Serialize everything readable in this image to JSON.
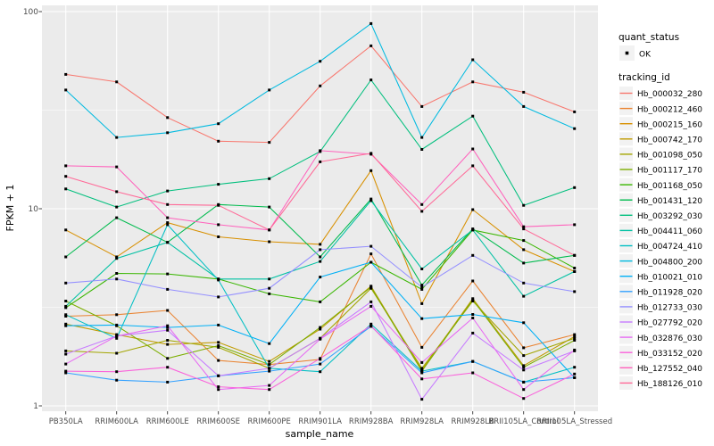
{
  "figure": {
    "background": "#FFFFFF",
    "panel_background": "#EBEBEB",
    "grid_color": "#FFFFFF",
    "tick_label_color": "#4D4D4D",
    "point_color": "#000000"
  },
  "chart_data": {
    "type": "line",
    "title": "",
    "xlabel": "sample_name",
    "ylabel": "FPKM + 1",
    "y_scale": "log10",
    "y_ticks": [
      1,
      10,
      100
    ],
    "y_minor_ticks": [
      3.1623,
      31.6228
    ],
    "ylim": [
      0.94,
      107
    ],
    "grid": "on",
    "legend_position": "right",
    "point_shape": "square",
    "categories": [
      "PB350LA",
      "RRIM600LA",
      "RRIM600LE",
      "RRIM600SE",
      "RRIM600PE",
      "RRIM901LA",
      "RRIM928BA",
      "RRIM928LA",
      "RRIM928LB",
      "RRII105LA_Control",
      "RRII105LA_Stressed"
    ],
    "legend": {
      "quant_status_title": "quant_status",
      "quant_status_items": [
        {
          "label": "OK",
          "marker": "black-square-point"
        }
      ],
      "tracking_title": "tracking_id"
    },
    "series": [
      {
        "tracking_id": "Hb_000032_280",
        "color": "#F8766D",
        "values": [
          48,
          44,
          29,
          22,
          21.7,
          42,
          67,
          33,
          44,
          39,
          31
        ]
      },
      {
        "tracking_id": "Hb_000212_460",
        "color": "#EA8331",
        "values": [
          2.85,
          2.9,
          3.05,
          1.7,
          1.62,
          1.72,
          5.9,
          1.98,
          4.3,
          1.97,
          2.3
        ]
      },
      {
        "tracking_id": "Hb_000215_160",
        "color": "#D89000",
        "values": [
          7.8,
          5.7,
          8.5,
          7.2,
          6.8,
          6.6,
          15.6,
          3.3,
          9.9,
          6.2,
          4.8
        ]
      },
      {
        "tracking_id": "Hb_000742_170",
        "color": "#C09B00",
        "values": [
          2.6,
          2.3,
          2.05,
          2.1,
          1.68,
          2.45,
          4.05,
          1.52,
          3.5,
          1.6,
          2.25
        ]
      },
      {
        "tracking_id": "Hb_001098_050",
        "color": "#A3A500",
        "values": [
          1.9,
          1.85,
          2.15,
          1.98,
          1.55,
          2.2,
          3.95,
          1.55,
          3.4,
          1.8,
          2.2
        ]
      },
      {
        "tracking_id": "Hb_001117_170",
        "color": "#7CAE00",
        "values": [
          3.4,
          2.55,
          1.74,
          2.02,
          1.62,
          2.5,
          4.0,
          1.5,
          3.45,
          1.57,
          2.15
        ]
      },
      {
        "tracking_id": "Hb_001168_050",
        "color": "#39B600",
        "values": [
          3.15,
          4.7,
          4.67,
          4.4,
          3.7,
          3.37,
          5.35,
          3.9,
          7.8,
          6.9,
          5.0
        ]
      },
      {
        "tracking_id": "Hb_001431_120",
        "color": "#00BB4E",
        "values": [
          5.7,
          9.0,
          6.75,
          10.5,
          10.2,
          5.7,
          11.2,
          4.1,
          7.9,
          5.3,
          5.8
        ]
      },
      {
        "tracking_id": "Hb_003292_030",
        "color": "#00BF7D",
        "values": [
          12.6,
          10.2,
          12.3,
          13.3,
          14.2,
          19.5,
          45,
          20,
          29.5,
          10.4,
          12.8
        ]
      },
      {
        "tracking_id": "Hb_004411_060",
        "color": "#00C1A3",
        "values": [
          3.2,
          5.6,
          6.75,
          4.4,
          4.4,
          5.4,
          11.0,
          4.95,
          7.8,
          3.6,
          4.8
        ]
      },
      {
        "tracking_id": "Hb_004724_410",
        "color": "#00BFC4",
        "values": [
          2.9,
          2.2,
          8.3,
          4.35,
          1.55,
          1.49,
          2.6,
          1.5,
          1.68,
          1.32,
          1.57
        ]
      },
      {
        "tracking_id": "Hb_004800_200",
        "color": "#00BAE0",
        "values": [
          40,
          23,
          24.3,
          27,
          40,
          56,
          87,
          23,
          57,
          33,
          25.5
        ]
      },
      {
        "tracking_id": "Hb_010021_010",
        "color": "#00B0F6",
        "values": [
          2.55,
          2.57,
          2.5,
          2.57,
          2.07,
          4.5,
          5.35,
          2.77,
          2.91,
          2.64,
          1.39
        ]
      },
      {
        "tracking_id": "Hb_011928_020",
        "color": "#35A2FF",
        "values": [
          1.47,
          1.35,
          1.32,
          1.42,
          1.5,
          1.63,
          2.53,
          1.47,
          1.68,
          1.32,
          1.39
        ]
      },
      {
        "tracking_id": "Hb_012733_030",
        "color": "#9590FF",
        "values": [
          4.2,
          4.4,
          3.9,
          3.57,
          3.95,
          6.2,
          6.45,
          4.0,
          5.8,
          4.2,
          3.8
        ]
      },
      {
        "tracking_id": "Hb_027792_020",
        "color": "#C77CFF",
        "values": [
          1.83,
          2.26,
          2.42,
          1.42,
          1.55,
          2.2,
          3.37,
          1.08,
          2.34,
          1.52,
          1.9
        ]
      },
      {
        "tracking_id": "Hb_032876_030",
        "color": "#E76BF3",
        "values": [
          1.63,
          2.26,
          2.55,
          1.21,
          1.27,
          2.18,
          3.2,
          1.66,
          2.79,
          1.21,
          1.92
        ]
      },
      {
        "tracking_id": "Hb_033152_020",
        "color": "#FA62DB",
        "values": [
          1.5,
          1.49,
          1.57,
          1.25,
          1.21,
          1.74,
          2.55,
          1.37,
          1.47,
          1.09,
          1.45
        ]
      },
      {
        "tracking_id": "Hb_127552_040",
        "color": "#FF62BC",
        "values": [
          16.5,
          16.3,
          9.0,
          8.3,
          7.8,
          19.7,
          18.9,
          10.5,
          20.1,
          8.1,
          8.3
        ]
      },
      {
        "tracking_id": "Hb_188126_010",
        "color": "#FF6A98",
        "values": [
          14.6,
          12.2,
          10.5,
          10.4,
          7.8,
          17.3,
          19.1,
          9.7,
          16.5,
          7.9,
          5.8
        ]
      }
    ]
  }
}
